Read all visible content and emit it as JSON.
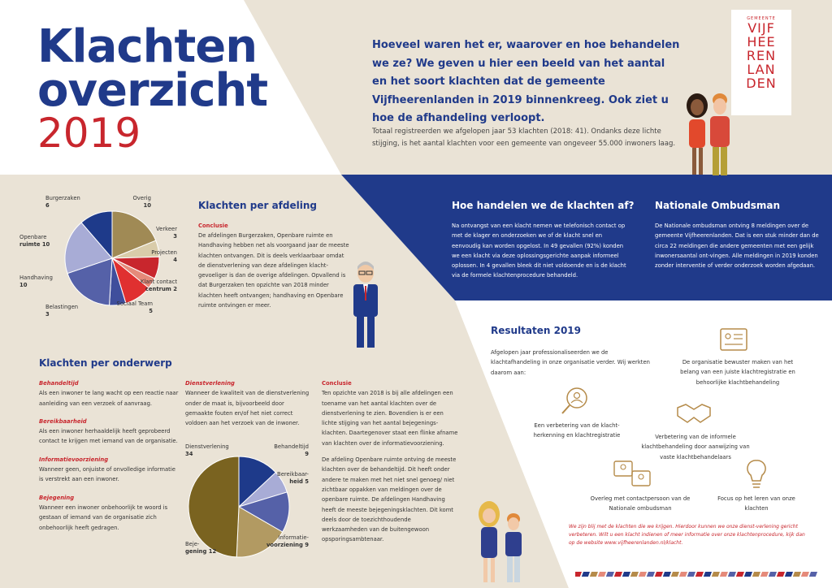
{
  "title": {
    "line1": "Klachten",
    "line2": "overzicht",
    "year": "2019"
  },
  "logo": {
    "small": "GEMEENTE",
    "lines": [
      "VIJF",
      "HEE",
      "REN",
      "LAN",
      "DEN"
    ]
  },
  "intro": {
    "heading": "Hoeveel waren het er, waarover en hoe behandelen we ze? We geven u hier een beeld van het aantal en het soort klachten dat de gemeente Vijfheerenlanden in 2019 binnenkreeg. Ook ziet u hoe de afhandeling verloopt.",
    "body": "Totaal registreerden we afgelopen jaar 53 klachten (2018: 41). Ondanks deze lichte stijging, is het aantal klachten voor een gemeente van ongeveer 55.000 inwoners laag."
  },
  "afdeling": {
    "heading": "Klachten per afdeling",
    "conclusie_label": "Conclusie",
    "text": "De afdelingen Burgerzaken, Openbare ruimte en Handhaving hebben net als voorgaand jaar de meeste klachten ontvangen. Dit is deels verklaarbaar omdat de dienstverlening van deze afdelingen klacht-gevoeliger is dan de overige afdelingen. Opvallend is dat Burgerzaken ten opzichte van 2018 minder klachten heeft ontvangen; handhaving en Openbare ruimte ontvingen er meer."
  },
  "handelen": {
    "heading": "Hoe handelen we de klachten af?",
    "text": "Na ontvangst van een klacht nemen we telefonisch contact op met de klager en onderzoeken we of de klacht snel en eenvoudig kan worden opgelost. In 49 gevallen (92%) konden we een klacht via deze oplossingsgerichte aanpak informeel oplossen. In 4 gevallen bleek dit niet voldoende en is de klacht via de formele klachtenprocedure behandeld."
  },
  "ombudsman": {
    "heading": "Nationale Ombudsman",
    "text": "De Nationale ombudsman ontving 8 meldingen over de gemeente Vijfheerenlanden. Dat is een stuk minder dan de circa 22 meldingen die andere gemeenten met een gelijk inwonersaantal ont-vingen. Alle meldingen in 2019 konden zonder interventie of verder onderzoek worden afgedaan."
  },
  "onderwerp": {
    "heading": "Klachten per onderwerp",
    "items": [
      {
        "title": "Behandeltijd",
        "text": "Als een inwoner te lang wacht op een reactie naar aanleiding van een verzoek of aanvraag."
      },
      {
        "title": "Bereikbaarheid",
        "text": "Als een inwoner herhaaldelijk heeft geprobeerd contact te krijgen met iemand van de organisatie."
      },
      {
        "title": "Informatievoorziening",
        "text": "Wanneer geen, onjuiste of onvolledige informatie is verstrekt aan een inwoner."
      },
      {
        "title": "Bejegening",
        "text": "Wanneer een inwoner onbehoorlijk te woord is gestaan of iemand van de organisatie zich onbehoorlijk heeft gedragen."
      }
    ],
    "dienst_title": "Dienstverlening",
    "dienst_text": "Wanneer de kwaliteit van de dienstverlening onder de maat is, bijvoorbeeld door gemaakte fouten en/of het niet correct voldoen aan het verzoek van de inwoner.",
    "conclusie_label": "Conclusie",
    "conclusie_text1": "Ten opzichte van 2018 is bij alle afdelingen een toename van het aantal klachten over de dienstverlening te zien. Bovendien is er een lichte stijging van het aantal bejegenings-klachten. Daartegenover staat een flinke afname van klachten over de informatievoorziening.",
    "conclusie_text2": "De afdeling Openbare ruimte ontving de meeste klachten over de behandeltijd. Dit heeft onder andere te maken met het niet snel genoeg/ niet zichtbaar oppakken van meldingen over de openbare ruimte. De afdelingen Handhaving heeft de meeste bejegeningsklachten. Dit komt deels door de toezichthoudende werkzaamheden van de buitengewoon opsporingsambtenaar."
  },
  "resultaten": {
    "heading": "Resultaten 2019",
    "intro": "Afgelopen jaar professionaliseerden we de klachtafhandeling in onze organisatie verder. Wij werkten daarom aan:",
    "items": [
      "De organisatie bewuster maken van het belang van een juiste klachtregistratie en behoorlijke klachtbehandeling",
      "Een verbetering van de klacht-herkenning en klachtregistratie",
      "Verbetering van de informele klachtbehandeling door aanwijzing van vaste klachtbehandelaars",
      "Overleg met contactpersoon van de Nationale ombudsman",
      "Focus op het leren van onze klachten"
    ],
    "footer": "We zijn blij met de klachten die we krijgen. Hierdoor kunnen we onze dienst-verlening gericht verbeteren. Wilt u een klacht indienen of meer informatie over onze klachtenprocedure, kijk dan op de website www.vijfheerenlanden.nl/klacht."
  },
  "chart_data": [
    {
      "type": "pie",
      "title": "",
      "categories": [
        "Overig",
        "Verkeer",
        "Projecten",
        "Klant contact centrum",
        "Sociaal Team",
        "Belastingen",
        "Handhaving",
        "Openbare ruimte",
        "Burgerzaken"
      ],
      "values": [
        10,
        3,
        4,
        2,
        5,
        3,
        10,
        10,
        6
      ],
      "colors": [
        "#a08a55",
        "#d9ccaa",
        "#c8262d",
        "#e58a7a",
        "#e03030",
        "#3f4e9c",
        "#5561a8",
        "#a8acd6",
        "#1e3a8a"
      ],
      "labels": [
        [
          "Overig",
          "10"
        ],
        [
          "Verkeer",
          "3"
        ],
        [
          "Projecten",
          "4"
        ],
        [
          "Klant contact",
          "centrum 2"
        ],
        [
          "Sociaal Team",
          "5"
        ],
        [
          "Belastingen",
          "3"
        ],
        [
          "Handhaving",
          "10"
        ],
        [
          "Openbare",
          "ruimte 10"
        ],
        [
          "Burgerzaken",
          "6"
        ]
      ]
    },
    {
      "type": "pie",
      "title": "",
      "categories": [
        "Behandeltijd",
        "Bereikbaarheid",
        "Informatievoorziening",
        "Bejegening",
        "Dienstverlening"
      ],
      "values": [
        9,
        5,
        9,
        12,
        34
      ],
      "colors": [
        "#1e3a8a",
        "#a8acd6",
        "#5561a8",
        "#b29a62",
        "#7a6320"
      ],
      "labels": [
        [
          "Behandeltijd",
          "9"
        ],
        [
          "Bereikbaar-",
          "heid 5"
        ],
        [
          "Informatie-",
          "voorziening 9"
        ],
        [
          "Beje-",
          "gening 12"
        ],
        [
          "Dienstverlening",
          "34"
        ]
      ]
    }
  ]
}
